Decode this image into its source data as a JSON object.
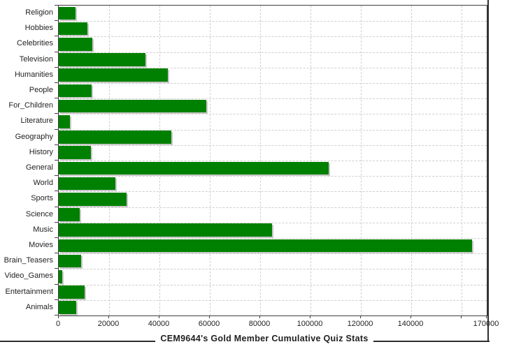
{
  "chart_data": {
    "type": "bar",
    "orientation": "horizontal",
    "title": "CEM9644's Gold Member Cumulative Quiz Stats",
    "title_position": "bottom",
    "categories": [
      "Religion",
      "Hobbies",
      "Celebrities",
      "Television",
      "Humanities",
      "People",
      "For_Children",
      "Literature",
      "Geography",
      "History",
      "General",
      "World",
      "Sports",
      "Science",
      "Music",
      "Movies",
      "Brain_Teasers",
      "Video_Games",
      "Entertainment",
      "Animals"
    ],
    "values": [
      6600,
      11400,
      13300,
      34500,
      43200,
      13000,
      58600,
      4400,
      44800,
      12900,
      107200,
      22500,
      27000,
      8400,
      84600,
      164200,
      8800,
      1400,
      10400,
      7000
    ],
    "xlabel": "",
    "ylabel": "",
    "xlim": [
      0,
      170000
    ],
    "x_tick_values": [
      0,
      20000,
      40000,
      60000,
      80000,
      100000,
      120000,
      140000,
      160000,
      170000
    ],
    "x_tick_labels": [
      "0",
      "20000",
      "40000",
      "60000",
      "80000",
      "100000",
      "120000",
      "140000",
      "",
      "170000"
    ],
    "grid_x_values": [
      20000,
      40000,
      60000,
      80000,
      100000,
      120000,
      140000,
      160000
    ],
    "grid_style": "dashed",
    "legend": "none",
    "colors": {
      "bar": "#008000",
      "bar_shadow": "#c9c9c9",
      "gridline": "#cfcfcf",
      "frame": "#3f3f3f",
      "text": "#222222",
      "title_text": "#1f1f1f",
      "background": "#ffffff"
    }
  }
}
